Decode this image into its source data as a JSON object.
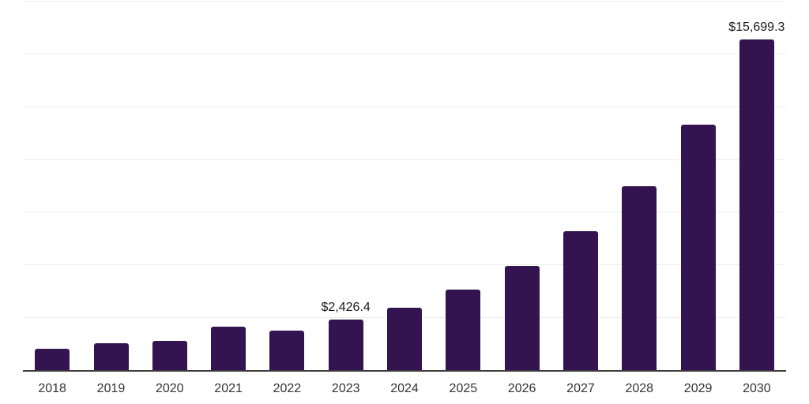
{
  "chart_data": {
    "type": "bar",
    "title": "",
    "xlabel": "",
    "ylabel": "",
    "categories": [
      "2018",
      "2019",
      "2020",
      "2021",
      "2022",
      "2023",
      "2024",
      "2025",
      "2026",
      "2027",
      "2028",
      "2029",
      "2030"
    ],
    "values": [
      1050,
      1300,
      1420,
      2100,
      1910,
      2426.4,
      3010,
      3850,
      4990,
      6620,
      8750,
      11660,
      15699.3
    ],
    "value_labels": {
      "2023": "$2,426.4",
      "2030": "$15,699.3"
    },
    "ylim": [
      0,
      17500
    ],
    "grid_step": 2500,
    "grid_orientation": "horizontal",
    "y_tick_labels_visible": false,
    "legend_position": "none",
    "colors": {
      "bar": "#331450",
      "axis_line": "#3a3a3a",
      "gridline": "#ededed",
      "value_label": "#1a1a1a",
      "tick_label": "#333333",
      "background": "#ffffff"
    }
  }
}
